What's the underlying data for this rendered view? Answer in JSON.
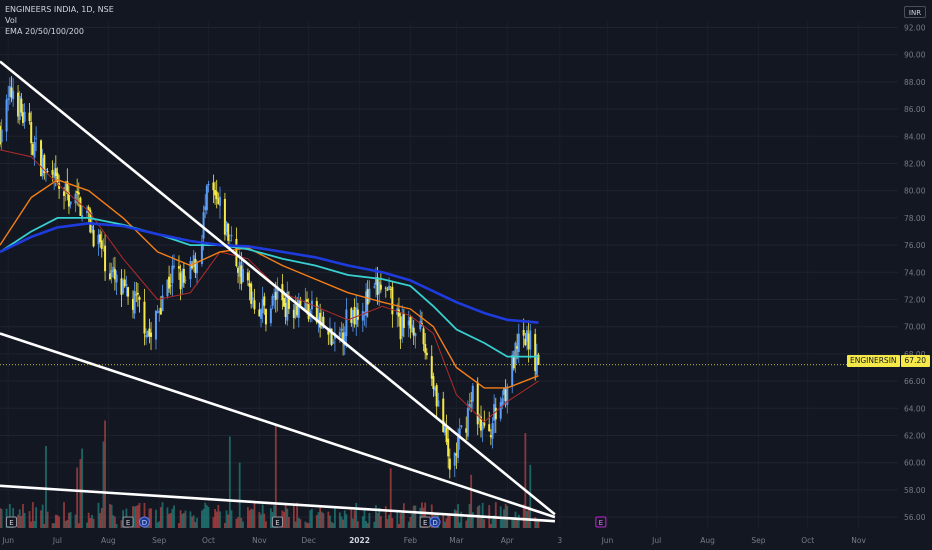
{
  "header": {
    "symbol_line": "ENGINEERS INDIA, 1D, NSE",
    "indicator_vol": "Vol",
    "indicator_ema": "EMA 20/50/100/200",
    "currency": "INR"
  },
  "price_tag": {
    "symbol": "ENGINERSIN",
    "value": "67.20"
  },
  "colors": {
    "background": "#131722",
    "candle": "#f5e94a",
    "candle_blue": "#5b9cf6",
    "ema20": "#b22b2b",
    "ema50": "#f57f17",
    "ema100": "#37d0d0",
    "ema200": "#1e3cde",
    "trendline": "#ffffff",
    "vol_up": "#26a69a",
    "vol_down": "#ef5350"
  },
  "chart_data": {
    "type": "line",
    "x_tick_labels": [
      "Jun",
      "Jul",
      "Aug",
      "Sep",
      "Oct",
      "Nov",
      "Dec",
      "2022",
      "Feb",
      "Mar",
      "Apr",
      "3",
      "Jun",
      "Jul",
      "Aug",
      "Sep",
      "Oct",
      "Nov"
    ],
    "y_ticks": [
      56,
      58,
      60,
      62,
      64,
      66,
      68,
      70,
      72,
      74,
      76,
      78,
      80,
      82,
      84,
      86,
      88,
      90,
      92
    ],
    "y_tick_labels": [
      "56.00",
      "58.00",
      "60.00",
      "62.00",
      "64.00",
      "66.00",
      "68.00",
      "70.00",
      "72.00",
      "74.00",
      "76.00",
      "78.00",
      "80.00",
      "82.00",
      "84.00",
      "86.00",
      "88.00",
      "90.00",
      "92.00"
    ],
    "ylim": [
      55.2,
      92.4
    ],
    "xlim": [
      "2021-05-27",
      "2022-11-25"
    ],
    "last_price": 67.2,
    "price_path": [
      [
        "2021-05-27",
        84.5
      ],
      [
        "2021-06-04",
        87.5
      ],
      [
        "2021-06-11",
        85.0
      ],
      [
        "2021-06-18",
        83.0
      ],
      [
        "2021-06-25",
        81.0
      ],
      [
        "2021-07-02",
        80.0
      ],
      [
        "2021-07-09",
        79.5
      ],
      [
        "2021-07-16",
        79.0
      ],
      [
        "2021-07-23",
        77.0
      ],
      [
        "2021-07-30",
        75.0
      ],
      [
        "2021-08-06",
        73.0
      ],
      [
        "2021-08-13",
        72.0
      ],
      [
        "2021-08-20",
        71.5
      ],
      [
        "2021-08-27",
        69.0
      ],
      [
        "2021-09-03",
        72.5
      ],
      [
        "2021-09-10",
        74.0
      ],
      [
        "2021-09-17",
        73.0
      ],
      [
        "2021-09-24",
        75.0
      ],
      [
        "2021-10-01",
        80.0
      ],
      [
        "2021-10-08",
        78.5
      ],
      [
        "2021-10-15",
        76.0
      ],
      [
        "2021-10-22",
        73.5
      ],
      [
        "2021-10-29",
        72.0
      ],
      [
        "2021-11-05",
        71.0
      ],
      [
        "2021-11-12",
        72.5
      ],
      [
        "2021-11-19",
        71.5
      ],
      [
        "2021-11-26",
        72.0
      ],
      [
        "2021-12-03",
        71.0
      ],
      [
        "2021-12-10",
        70.0
      ],
      [
        "2021-12-17",
        68.5
      ],
      [
        "2021-12-24",
        70.5
      ],
      [
        "2021-12-31",
        71.5
      ],
      [
        "2022-01-07",
        72.0
      ],
      [
        "2022-01-14",
        73.0
      ],
      [
        "2022-01-21",
        71.5
      ],
      [
        "2022-01-28",
        69.5
      ],
      [
        "2022-02-04",
        70.5
      ],
      [
        "2022-02-11",
        68.0
      ],
      [
        "2022-02-18",
        64.5
      ],
      [
        "2022-02-25",
        59.5
      ],
      [
        "2022-03-04",
        62.0
      ],
      [
        "2022-03-11",
        65.0
      ],
      [
        "2022-03-18",
        62.0
      ],
      [
        "2022-03-25",
        63.5
      ],
      [
        "2022-04-01",
        66.0
      ],
      [
        "2022-04-08",
        68.5
      ],
      [
        "2022-04-14",
        69.0
      ],
      [
        "2022-04-20",
        67.2
      ]
    ],
    "series": [
      {
        "name": "EMA 20",
        "points": [
          [
            "2021-05-27",
            83.0
          ],
          [
            "2021-06-15",
            82.5
          ],
          [
            "2021-07-01",
            80.5
          ],
          [
            "2021-07-20",
            78.5
          ],
          [
            "2021-08-10",
            75.0
          ],
          [
            "2021-08-31",
            72.0
          ],
          [
            "2021-09-20",
            72.5
          ],
          [
            "2021-10-08",
            75.5
          ],
          [
            "2021-10-25",
            75.0
          ],
          [
            "2021-11-15",
            72.5
          ],
          [
            "2021-12-05",
            71.5
          ],
          [
            "2021-12-25",
            70.5
          ],
          [
            "2022-01-15",
            71.5
          ],
          [
            "2022-02-01",
            70.8
          ],
          [
            "2022-02-15",
            69.5
          ],
          [
            "2022-03-01",
            65.0
          ],
          [
            "2022-03-18",
            63.0
          ],
          [
            "2022-04-01",
            64.5
          ],
          [
            "2022-04-20",
            66.0
          ]
        ]
      },
      {
        "name": "EMA 50",
        "points": [
          [
            "2021-05-27",
            76.0
          ],
          [
            "2021-06-15",
            79.5
          ],
          [
            "2021-07-01",
            80.8
          ],
          [
            "2021-07-20",
            80.0
          ],
          [
            "2021-08-10",
            78.0
          ],
          [
            "2021-08-31",
            75.5
          ],
          [
            "2021-09-20",
            74.5
          ],
          [
            "2021-10-08",
            75.5
          ],
          [
            "2021-10-25",
            75.8
          ],
          [
            "2021-11-15",
            74.5
          ],
          [
            "2021-12-05",
            73.5
          ],
          [
            "2021-12-25",
            72.5
          ],
          [
            "2022-01-15",
            71.8
          ],
          [
            "2022-02-01",
            71.3
          ],
          [
            "2022-02-15",
            70.0
          ],
          [
            "2022-03-01",
            67.0
          ],
          [
            "2022-03-18",
            65.5
          ],
          [
            "2022-04-01",
            65.5
          ],
          [
            "2022-04-20",
            66.4
          ]
        ]
      },
      {
        "name": "EMA 100",
        "points": [
          [
            "2021-05-27",
            75.5
          ],
          [
            "2021-06-15",
            77.0
          ],
          [
            "2021-07-01",
            78.0
          ],
          [
            "2021-07-20",
            78.0
          ],
          [
            "2021-08-10",
            77.5
          ],
          [
            "2021-08-31",
            76.8
          ],
          [
            "2021-09-20",
            76.0
          ],
          [
            "2021-10-08",
            76.0
          ],
          [
            "2021-10-25",
            75.7
          ],
          [
            "2021-11-15",
            75.0
          ],
          [
            "2021-12-05",
            74.5
          ],
          [
            "2021-12-25",
            73.8
          ],
          [
            "2022-01-15",
            73.5
          ],
          [
            "2022-02-01",
            73.0
          ],
          [
            "2022-02-15",
            71.5
          ],
          [
            "2022-03-01",
            69.8
          ],
          [
            "2022-03-18",
            68.8
          ],
          [
            "2022-04-01",
            67.8
          ],
          [
            "2022-04-20",
            67.8
          ]
        ]
      },
      {
        "name": "EMA 200",
        "points": [
          [
            "2021-05-27",
            75.5
          ],
          [
            "2021-06-15",
            76.6
          ],
          [
            "2021-07-01",
            77.3
          ],
          [
            "2021-07-20",
            77.6
          ],
          [
            "2021-08-10",
            77.4
          ],
          [
            "2021-08-31",
            76.8
          ],
          [
            "2021-09-20",
            76.3
          ],
          [
            "2021-10-08",
            76.0
          ],
          [
            "2021-10-25",
            75.9
          ],
          [
            "2021-11-15",
            75.5
          ],
          [
            "2021-12-05",
            75.1
          ],
          [
            "2021-12-25",
            74.5
          ],
          [
            "2022-01-15",
            74.0
          ],
          [
            "2022-02-01",
            73.4
          ],
          [
            "2022-02-15",
            72.6
          ],
          [
            "2022-03-01",
            71.8
          ],
          [
            "2022-03-18",
            71.0
          ],
          [
            "2022-04-01",
            70.5
          ],
          [
            "2022-04-20",
            70.3
          ]
        ]
      }
    ],
    "trendlines": [
      [
        [
          "2021-05-27",
          89.5
        ],
        [
          "2022-04-30",
          56.2
        ]
      ],
      [
        [
          "2021-05-27",
          69.5
        ],
        [
          "2022-04-30",
          56.0
        ]
      ],
      [
        [
          "2021-05-27",
          58.3
        ],
        [
          "2022-04-30",
          55.7
        ]
      ]
    ],
    "event_markers": [
      {
        "date": "2021-06-03",
        "label": "E",
        "kind": "earnings"
      },
      {
        "date": "2021-08-13",
        "label": "E",
        "kind": "earnings"
      },
      {
        "date": "2021-08-23",
        "label": "D",
        "kind": "dividend"
      },
      {
        "date": "2021-11-12",
        "label": "E",
        "kind": "earnings"
      },
      {
        "date": "2022-02-10",
        "label": "E",
        "kind": "earnings"
      },
      {
        "date": "2022-02-16",
        "label": "D",
        "kind": "dividend"
      },
      {
        "date": "2022-05-28",
        "label": "E",
        "kind": "upcoming"
      }
    ]
  }
}
